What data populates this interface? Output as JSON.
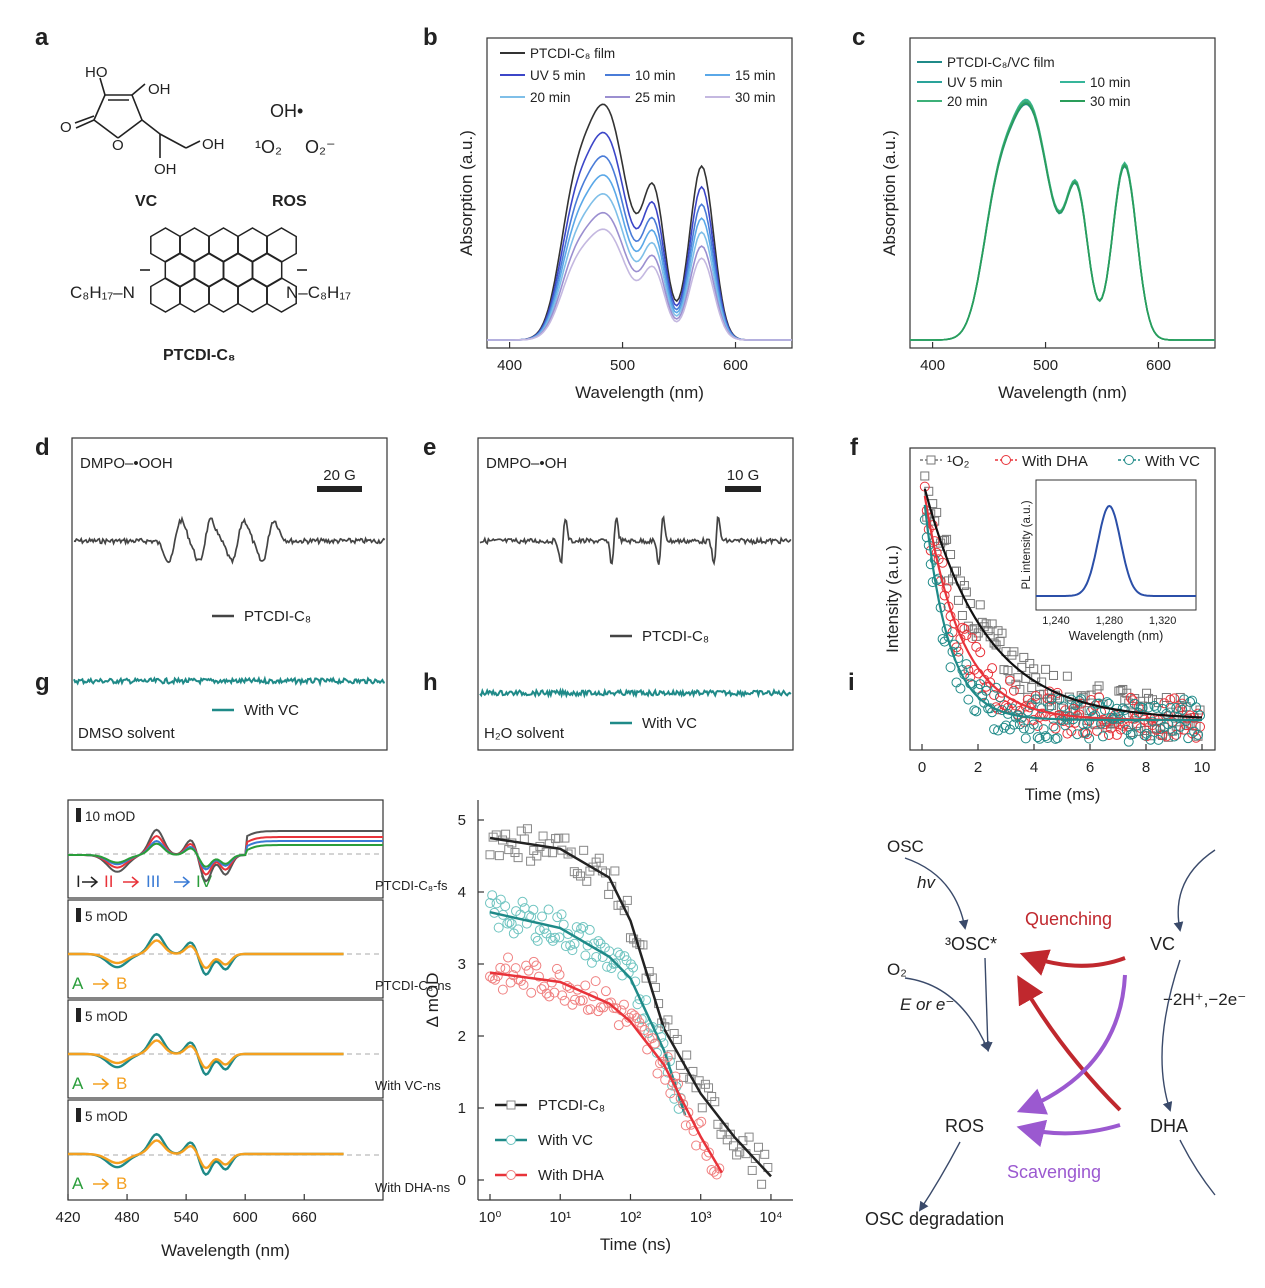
{
  "panels": {
    "a": {
      "letter": "a",
      "vc_oh_top_left": "HO",
      "vc_oh_top_right": "OH",
      "vc_oh_bottom": "OH",
      "vc_oh_side": "OH",
      "vc_ring_o": "O",
      "vc_carbonyl_o": "O",
      "vc_label": "VC",
      "ros_hydroxyl": "OH•",
      "ros_singlet": "¹O₂",
      "ros_superoxide": "O₂⁻",
      "ros_label": "ROS",
      "ptcdi_left_chain": "C₈H₁₇–N",
      "ptcdi_right_chain": "N–C₈H₁₇",
      "ptcdi_label": "PTCDI-C₈"
    },
    "b": {
      "letter": "b",
      "legend": [
        "PTCDI-C₈ film",
        "UV 5 min",
        "10 min",
        "15 min",
        "20 min",
        "25 min",
        "30 min"
      ],
      "xlabel": "Wavelength (nm)",
      "ylabel": "Absorption (a.u.)",
      "xticks": [
        "400",
        "500",
        "600"
      ]
    },
    "c": {
      "letter": "c",
      "legend": [
        "PTCDI-C₈/VC film",
        "UV 5 min",
        "10 min",
        "20 min",
        "30 min"
      ],
      "xlabel": "Wavelength (nm)",
      "ylabel": "Absorption (a.u.)",
      "xticks": [
        "400",
        "500",
        "600"
      ]
    },
    "d": {
      "letter": "d",
      "adduct": "DMPO–•OOH",
      "scale": "20 G",
      "trace1": "PTCDI-C₈",
      "trace2": "With VC",
      "solvent": "DMSO solvent"
    },
    "e": {
      "letter": "e",
      "adduct": "DMPO–•OH",
      "scale": "10 G",
      "trace1": "PTCDI-C₈",
      "trace2": "With VC",
      "solvent": "H₂O solvent"
    },
    "f": {
      "letter": "f",
      "legend": [
        "¹O₂",
        "With DHA",
        "With VC"
      ],
      "xlabel": "Time (ms)",
      "ylabel": "Intensity (a.u.)",
      "xticks": [
        "0",
        "2",
        "4",
        "6",
        "8",
        "10"
      ],
      "inset_xlabel": "Wavelength (nm)",
      "inset_ylabel": "PL intensity (a.u.)",
      "inset_xticks": [
        "1,240",
        "1,280",
        "1,320"
      ]
    },
    "g": {
      "letter": "g",
      "scale_labels": [
        "10 mOD",
        "5 mOD",
        "5 mOD",
        "5 mOD"
      ],
      "sub_labels": [
        "PTCDI-C₈-fs",
        "PTCDI-C₈-ns",
        "With VC-ns",
        "With DHA-ns"
      ],
      "roman": [
        "I",
        "II",
        "III",
        "IV"
      ],
      "ab": [
        "A",
        "B"
      ],
      "xlabel": "Wavelength (nm)",
      "xticks": [
        "420",
        "480",
        "540",
        "600",
        "660"
      ]
    },
    "h": {
      "letter": "h",
      "xlabel": "Time (ns)",
      "ylabel": "Δ mOD",
      "yticks": [
        "0",
        "1",
        "2",
        "3",
        "4",
        "5"
      ],
      "xticks": [
        "10⁰",
        "10¹",
        "10²",
        "10³",
        "10⁴"
      ],
      "legend": [
        "PTCDI-C₈",
        "With VC",
        "With DHA"
      ]
    },
    "i": {
      "letter": "i",
      "osc": "OSC",
      "hv": "hv",
      "quenching": "Quenching",
      "osc_star": "³OSC*",
      "vc": "VC",
      "o2": "O₂",
      "e_or_e": "E or e⁻",
      "minus": "−2H⁺,−2e⁻",
      "ros": "ROS",
      "dha": "DHA",
      "scavenging": "Scavenging",
      "degradation": "OSC degradation"
    }
  },
  "colors": {
    "black": "#222222",
    "gray": "#555555",
    "teal": "#1f8a88",
    "red": "#e8333a",
    "blue": "#3a7bd5",
    "green": "#2a9d3a",
    "orange": "#f4a020",
    "purple": "#9b59d0",
    "darkred": "#c0282e"
  },
  "chart_data": [
    {
      "panel": "b",
      "type": "line",
      "xlabel": "Wavelength (nm)",
      "ylabel": "Absorption (a.u.)",
      "xlim": [
        380,
        650
      ],
      "series": [
        {
          "name": "PTCDI-C₈ film",
          "peak_scale": 1.0
        },
        {
          "name": "UV 5 min",
          "peak_scale": 0.88
        },
        {
          "name": "10 min",
          "peak_scale": 0.78
        },
        {
          "name": "15 min",
          "peak_scale": 0.7
        },
        {
          "name": "20 min",
          "peak_scale": 0.62
        },
        {
          "name": "25 min",
          "peak_scale": 0.54
        },
        {
          "name": "30 min",
          "peak_scale": 0.47
        }
      ]
    },
    {
      "panel": "c",
      "type": "line",
      "xlabel": "Wavelength (nm)",
      "ylabel": "Absorption (a.u.)",
      "xlim": [
        380,
        650
      ],
      "series": [
        {
          "name": "PTCDI-C₈/VC film"
        },
        {
          "name": "UV 5 min"
        },
        {
          "name": "10 min"
        },
        {
          "name": "20 min"
        },
        {
          "name": "30 min"
        }
      ]
    },
    {
      "panel": "f",
      "type": "scatter",
      "xlabel": "Time (ms)",
      "ylabel": "Intensity (a.u.)",
      "xlim": [
        0,
        10
      ],
      "series": [
        {
          "name": "¹O₂",
          "tau_ms": 2.2
        },
        {
          "name": "With DHA",
          "tau_ms": 1.3
        },
        {
          "name": "With VC",
          "tau_ms": 0.85
        }
      ],
      "inset": {
        "xlabel": "Wavelength (nm)",
        "ylabel": "PL intensity (a.u.)",
        "peak_nm": 1280
      }
    },
    {
      "panel": "h",
      "type": "scatter",
      "xlabel": "Time (ns)",
      "ylabel": "Δ mOD",
      "ylim": [
        0,
        5
      ],
      "xscale": "log",
      "series": [
        {
          "name": "PTCDI-C₈",
          "points": [
            [
              1,
              4.75
            ],
            [
              10,
              4.6
            ],
            [
              50,
              4.2
            ],
            [
              100,
              3.6
            ],
            [
              300,
              2.1
            ],
            [
              1000,
              1.2
            ],
            [
              3000,
              0.6
            ],
            [
              10000,
              0.05
            ]
          ]
        },
        {
          "name": "With VC",
          "points": [
            [
              1,
              3.72
            ],
            [
              10,
              3.5
            ],
            [
              50,
              3.1
            ],
            [
              100,
              2.8
            ],
            [
              300,
              1.8
            ],
            [
              600,
              0.9
            ]
          ]
        },
        {
          "name": "With DHA",
          "points": [
            [
              1,
              2.88
            ],
            [
              10,
              2.75
            ],
            [
              50,
              2.45
            ],
            [
              100,
              2.2
            ],
            [
              300,
              1.6
            ],
            [
              1000,
              0.6
            ],
            [
              2000,
              0.1
            ]
          ]
        }
      ]
    }
  ]
}
